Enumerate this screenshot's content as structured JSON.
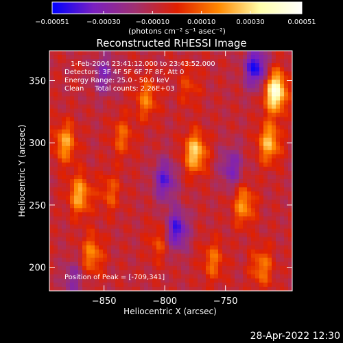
{
  "chart_data": {
    "type": "heatmap",
    "title": "Reconstructed RHESSI Image",
    "xlabel": "Heliocentric X (arcsec)",
    "ylabel": "Heliocentric Y (arcsec)",
    "xlim": [
      -895,
      -695
    ],
    "ylim": [
      181,
      374
    ],
    "xticks": [
      -850,
      -800,
      -750
    ],
    "yticks": [
      200,
      250,
      300,
      350
    ],
    "xtick_labels": [
      "−850",
      "−800",
      "−750"
    ],
    "ytick_labels": [
      "200",
      "250",
      "300",
      "350"
    ],
    "colorbar": {
      "range": [
        -0.00051,
        0.00051
      ],
      "ticks": [
        -0.00051,
        -0.0003,
        -0.0001,
        0.0001,
        0.0003,
        0.00051
      ],
      "tick_labels": [
        "−0.00051",
        "−0.00030",
        "−0.00010",
        "0.00010",
        "0.00030",
        "0.00051"
      ],
      "unit_label": "(photons cm⁻² s⁻¹ asec⁻²)",
      "colors": [
        "#0000ff",
        "#7a20c0",
        "#a03070",
        "#e02000",
        "#ff8800",
        "#ffffaa",
        "#ffffff"
      ]
    },
    "annotations": [
      "1-Feb-2004 23:41:12.000 to 23:43:52.000",
      "Detectors: 3F 4F 5F 6F 7F 8F, Att 0",
      "Energy Range: 25.0 - 50.0 keV",
      "Clean     Total counts: 2.26E+03"
    ],
    "peak_label": "Position of Peak = [-709,341]",
    "sources": [
      {
        "x": -709,
        "y": 341,
        "amp": 0.00051
      },
      {
        "x": -775,
        "y": 292,
        "amp": 0.00036
      },
      {
        "x": -714,
        "y": 300,
        "amp": 0.00032
      },
      {
        "x": -882,
        "y": 300,
        "amp": 0.00028
      },
      {
        "x": -870,
        "y": 258,
        "amp": 0.0003
      },
      {
        "x": -860,
        "y": 210,
        "amp": 0.00024
      },
      {
        "x": -815,
        "y": 335,
        "amp": 0.00022
      },
      {
        "x": -835,
        "y": 305,
        "amp": 0.00018
      },
      {
        "x": -735,
        "y": 250,
        "amp": 0.00026
      },
      {
        "x": -760,
        "y": 205,
        "amp": 0.0002
      },
      {
        "x": -805,
        "y": 220,
        "amp": 0.00014
      },
      {
        "x": -845,
        "y": 260,
        "amp": 0.00016
      },
      {
        "x": -720,
        "y": 200,
        "amp": 0.00022
      },
      {
        "x": -780,
        "y": 345,
        "amp": 0.00012
      },
      {
        "x": -800,
        "y": 270,
        "amp": -0.0003
      },
      {
        "x": -725,
        "y": 360,
        "amp": -0.0004
      },
      {
        "x": -790,
        "y": 230,
        "amp": -0.00035
      },
      {
        "x": -850,
        "y": 355,
        "amp": -0.00022
      },
      {
        "x": -875,
        "y": 190,
        "amp": -0.00018
      },
      {
        "x": -745,
        "y": 280,
        "amp": -0.00024
      }
    ]
  },
  "footer": {
    "datetime": "28-Apr-2022 12:30"
  }
}
